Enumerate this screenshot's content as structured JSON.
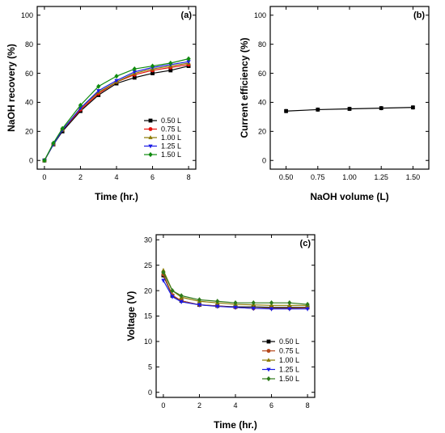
{
  "chart_data": [
    {
      "type": "line",
      "panel_label": "(a)",
      "xlabel": "Time (hr.)",
      "ylabel": "NaOH recovery (%)",
      "xlim": [
        -0.4,
        8.4
      ],
      "ylim": [
        -6,
        106
      ],
      "xticks": [
        0,
        2,
        4,
        6,
        8
      ],
      "yticks": [
        0,
        20,
        40,
        60,
        80,
        100
      ],
      "legend_position": "bottom-right",
      "x": [
        0,
        0.5,
        1,
        2,
        3,
        4,
        5,
        6,
        7,
        8
      ],
      "series": [
        {
          "name": "0.50 L",
          "color": "#000000",
          "marker": "square",
          "values": [
            0,
            11,
            20,
            34,
            45,
            53,
            57,
            60,
            62,
            65
          ]
        },
        {
          "name": "0.75 L",
          "color": "#e8120e",
          "marker": "circle",
          "values": [
            0,
            11,
            21,
            35,
            46,
            54,
            59,
            62,
            64,
            66
          ]
        },
        {
          "name": "1.00 L",
          "color": "#8a7a00",
          "marker": "triangle-up",
          "values": [
            0,
            11,
            21,
            36,
            47,
            54,
            60,
            63,
            65,
            67
          ]
        },
        {
          "name": "1.25 L",
          "color": "#1a1ae6",
          "marker": "triangle-down",
          "values": [
            0,
            11,
            21,
            36,
            48,
            55,
            61,
            64,
            66,
            68
          ]
        },
        {
          "name": "1.50 L",
          "color": "#0f8a0f",
          "marker": "diamond",
          "values": [
            0,
            12,
            22,
            38,
            51,
            58,
            63,
            65,
            67,
            70
          ]
        }
      ]
    },
    {
      "type": "line",
      "panel_label": "(b)",
      "xlabel": "NaOH volume (L)",
      "ylabel": "Current efficiency (%)",
      "xlim": [
        0.375,
        1.625
      ],
      "ylim": [
        -6,
        106
      ],
      "xticks": [
        0.5,
        0.75,
        1.0,
        1.25,
        1.5
      ],
      "xtick_labels": [
        "0.50",
        "0.75",
        "1.00",
        "1.25",
        "1.50"
      ],
      "yticks": [
        0,
        20,
        40,
        60,
        80,
        100
      ],
      "x": [
        0.5,
        0.75,
        1.0,
        1.25,
        1.5
      ],
      "series": [
        {
          "color": "#000000",
          "marker": "square",
          "values": [
            34,
            35,
            35.5,
            36,
            36.5
          ]
        }
      ]
    },
    {
      "type": "line",
      "panel_label": "(c)",
      "xlabel": "Time (hr.)",
      "ylabel": "Voltage (V)",
      "xlim": [
        -0.4,
        8.4
      ],
      "ylim": [
        -1,
        31
      ],
      "xticks": [
        0,
        2,
        4,
        6,
        8
      ],
      "yticks": [
        0,
        5,
        10,
        15,
        20,
        25,
        30
      ],
      "legend_position": "bottom-right",
      "x": [
        0,
        0.5,
        1,
        2,
        3,
        4,
        5,
        6,
        7,
        8
      ],
      "series": [
        {
          "name": "0.50 L",
          "color": "#000000",
          "marker": "square",
          "values": [
            23,
            19,
            18,
            17.2,
            17,
            16.8,
            16.8,
            16.7,
            16.7,
            16.7
          ]
        },
        {
          "name": "0.75 L",
          "color": "#b5471a",
          "marker": "circle",
          "values": [
            23.2,
            19.1,
            18,
            17.2,
            17,
            16.7,
            16.5,
            16.5,
            16.5,
            16.6
          ]
        },
        {
          "name": "1.00 L",
          "color": "#8a7a00",
          "marker": "triangle-up",
          "values": [
            24,
            20,
            18.7,
            17.9,
            17.6,
            17.3,
            17.2,
            17.1,
            17.1,
            17.1
          ]
        },
        {
          "name": "1.25 L",
          "color": "#1a1ae6",
          "marker": "triangle-down",
          "values": [
            22,
            18.8,
            17.8,
            17.2,
            16.9,
            16.7,
            16.5,
            16.4,
            16.4,
            16.4
          ]
        },
        {
          "name": "1.50 L",
          "color": "#2e7a1a",
          "marker": "diamond",
          "values": [
            23.6,
            20,
            19,
            18.2,
            17.9,
            17.6,
            17.6,
            17.6,
            17.6,
            17.3
          ]
        }
      ]
    }
  ]
}
